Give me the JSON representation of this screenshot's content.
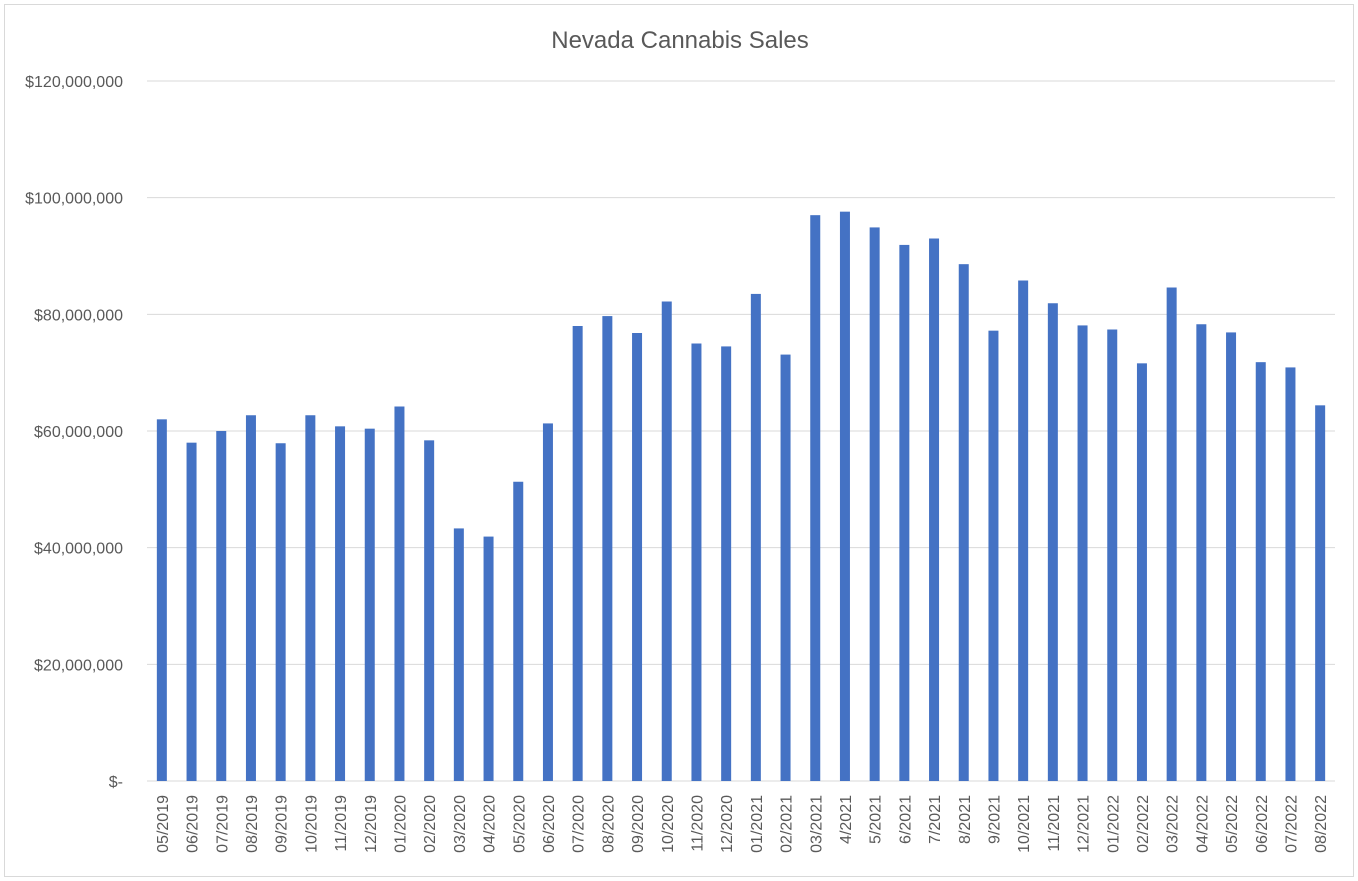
{
  "chart_data": {
    "type": "bar",
    "title": "Nevada Cannabis Sales",
    "xlabel": "",
    "ylabel": "",
    "ylim": [
      0,
      120000000
    ],
    "yticks": [
      0,
      20000000,
      40000000,
      60000000,
      80000000,
      100000000,
      120000000
    ],
    "ytick_labels": [
      "$-",
      "$20,000,000",
      "$40,000,000",
      "$60,000,000",
      "$80,000,000",
      "$100,000,000",
      "$120,000,000"
    ],
    "grid": true,
    "bar_color": "#4472c4",
    "categories": [
      "05/2019",
      "06/2019",
      "07/2019",
      "08/2019",
      "09/2019",
      "10/2019",
      "11/2019",
      "12/2019",
      "01/2020",
      "02/2020",
      "03/2020",
      "04/2020",
      "05/2020",
      "06/2020",
      "07/2020",
      "08/2020",
      "09/2020",
      "10/2020",
      "11/2020",
      "12/2020",
      "01/2021",
      "02/2021",
      "03/2021",
      "4/2021",
      "5/2021",
      "6/2021",
      "7/2021",
      "8/2021",
      "9/2021",
      "10/2021",
      "11/2021",
      "12/2021",
      "01/2022",
      "02/2022",
      "03/2022",
      "04/2022",
      "05/2022",
      "06/2022",
      "07/2022",
      "08/2022"
    ],
    "values": [
      62000000,
      58000000,
      60000000,
      62700000,
      57900000,
      62700000,
      60800000,
      60400000,
      64200000,
      58400000,
      43300000,
      41900000,
      51300000,
      61300000,
      78000000,
      79700000,
      76800000,
      82200000,
      75000000,
      74500000,
      83500000,
      73100000,
      97000000,
      97600000,
      94900000,
      91900000,
      93000000,
      88600000,
      77200000,
      85800000,
      81900000,
      78100000,
      77400000,
      71600000,
      84600000,
      78300000,
      76900000,
      71800000,
      70900000,
      64400000
    ]
  }
}
